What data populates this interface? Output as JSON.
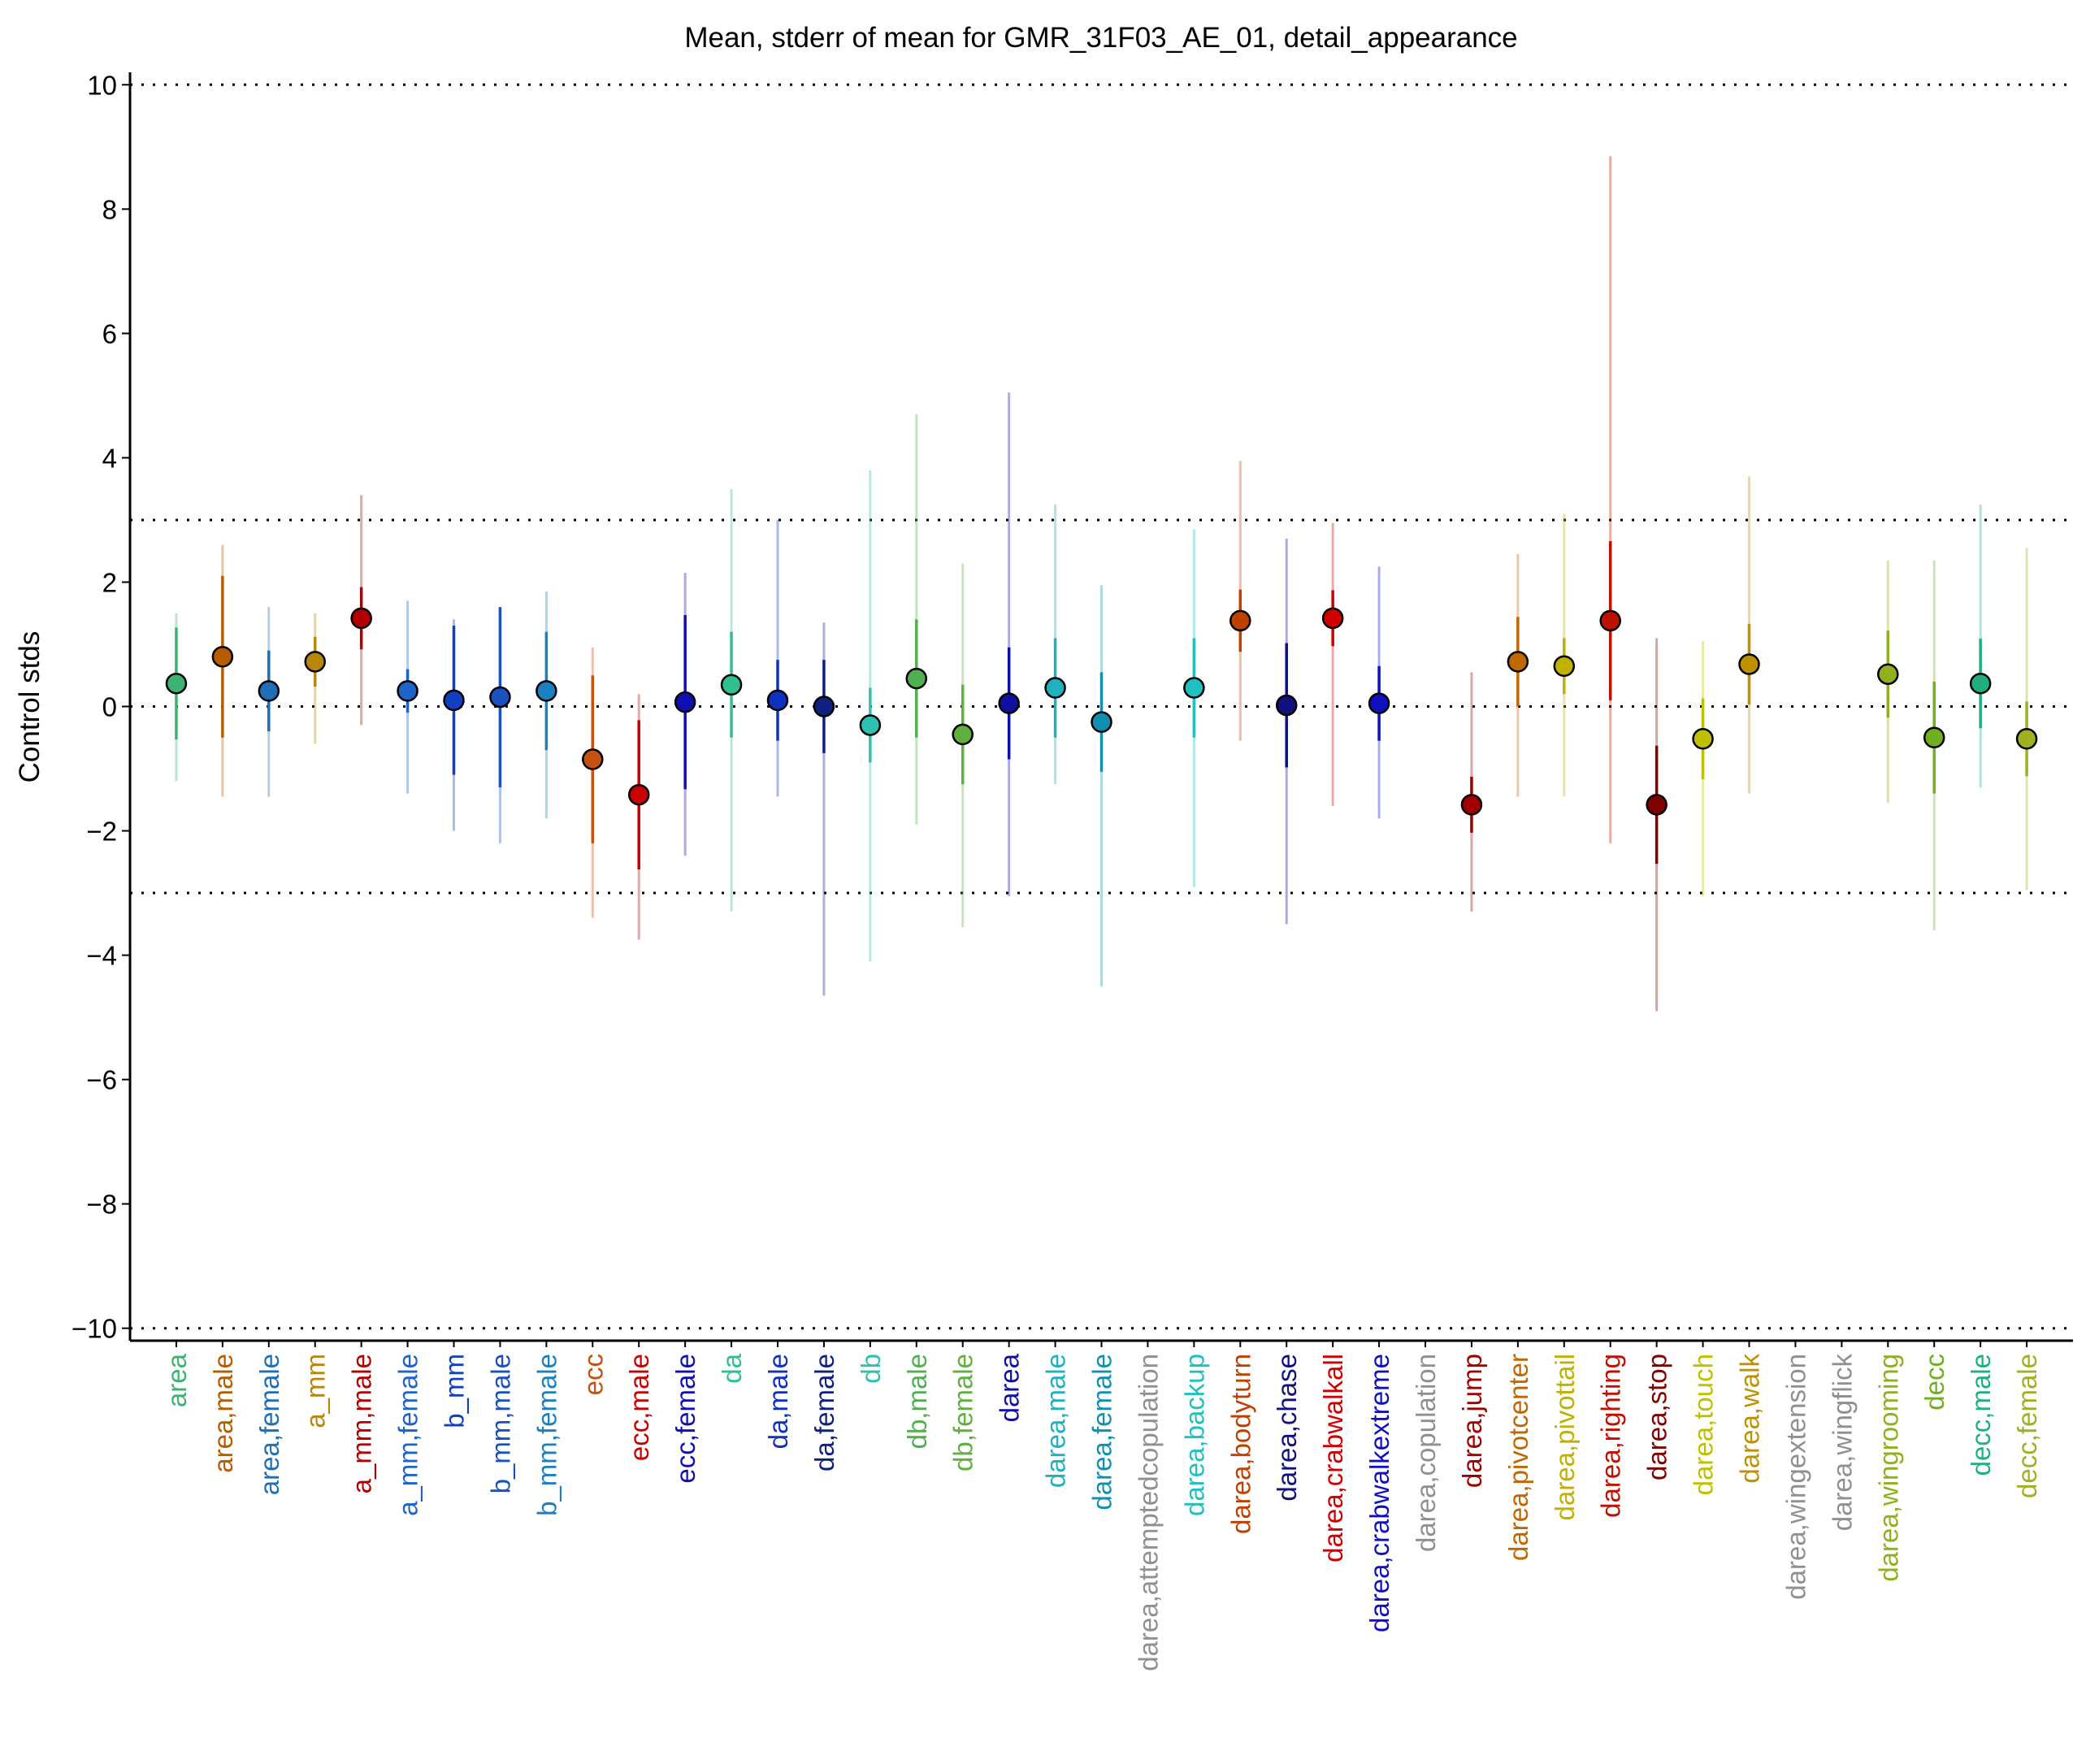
{
  "chart_data": {
    "type": "errorbar",
    "title": "Mean, stderr of mean for GMR_31F03_AE_01, detail_appearance",
    "ylabel": "Control stds",
    "categories": [
      "area",
      "area,male",
      "area,female",
      "a_mm",
      "a_mm,male",
      "a_mm,female",
      "b_mm",
      "b_mm,male",
      "b_mm,female",
      "ecc",
      "ecc,male",
      "ecc,female",
      "da",
      "da,male",
      "da,female",
      "db",
      "db,male",
      "db,female",
      "darea",
      "darea,male",
      "darea,female",
      "darea,attemptedcopulation",
      "darea,backup",
      "darea,bodyturn",
      "darea,chase",
      "darea,crabwalkall",
      "darea,crabwalkextreme",
      "darea,copulation",
      "darea,jump",
      "darea,pivotcenter",
      "darea,pivottail",
      "darea,righting",
      "darea,stop",
      "darea,touch",
      "darea,walk",
      "darea,wingextension",
      "darea,wingflick",
      "darea,wingrooming",
      "decc",
      "decc,male",
      "decc,female"
    ],
    "colors": [
      "#3cb371",
      "#b85c00",
      "#1f6fb5",
      "#b8860b",
      "#b00000",
      "#1e64c8",
      "#1040c0",
      "#1a50c0",
      "#1a80c0",
      "#c85010",
      "#c80000",
      "#1010b0",
      "#30c090",
      "#1030c0",
      "#102080",
      "#30c0b0",
      "#50b050",
      "#60b040",
      "#1010a0",
      "#20b0c0",
      "#1090b0",
      "#909090",
      "#20c0c0",
      "#c04000",
      "#101080",
      "#d00000",
      "#1010c0",
      "#909090",
      "#a00000",
      "#c06800",
      "#c0b000",
      "#c01000",
      "#800000",
      "#c0c000",
      "#c09000",
      "#909090",
      "#909090",
      "#90b020",
      "#70b020",
      "#20b080",
      "#a0b020"
    ],
    "mean": [
      0.37,
      0.8,
      0.25,
      0.72,
      1.42,
      0.25,
      0.1,
      0.15,
      0.25,
      -0.85,
      -1.42,
      0.07,
      0.35,
      0.1,
      0.0,
      -0.3,
      0.45,
      -0.45,
      0.05,
      0.3,
      -0.25,
      null,
      0.3,
      1.38,
      0.02,
      1.42,
      0.05,
      null,
      -1.58,
      0.72,
      0.65,
      1.38,
      -1.58,
      -0.52,
      0.68,
      null,
      null,
      0.52,
      -0.5,
      0.37,
      -0.52
    ],
    "err": [
      0.9,
      1.3,
      0.65,
      0.4,
      0.5,
      0.35,
      1.2,
      1.45,
      0.95,
      1.35,
      1.2,
      1.4,
      0.85,
      0.65,
      0.75,
      0.6,
      0.95,
      0.8,
      0.9,
      0.8,
      0.8,
      null,
      0.8,
      0.5,
      1.0,
      0.45,
      0.6,
      null,
      0.45,
      0.72,
      0.45,
      1.28,
      0.95,
      0.65,
      0.65,
      null,
      null,
      0.7,
      0.9,
      0.72,
      0.6
    ],
    "low": [
      -1.2,
      -1.45,
      -1.45,
      -0.6,
      -0.3,
      -1.4,
      -2.0,
      -2.2,
      -1.8,
      -3.4,
      -3.75,
      -2.4,
      -3.3,
      -1.45,
      -4.65,
      -4.1,
      -1.9,
      -3.55,
      -3.05,
      -1.25,
      -4.5,
      null,
      -2.9,
      -0.55,
      -3.5,
      -1.6,
      -1.8,
      null,
      -3.3,
      -1.45,
      -1.45,
      -2.2,
      -4.9,
      -3.05,
      -1.4,
      null,
      null,
      -1.55,
      -3.6,
      -1.3,
      -2.95
    ],
    "high": [
      1.5,
      2.6,
      1.6,
      1.5,
      3.4,
      1.7,
      1.4,
      1.6,
      1.85,
      0.95,
      0.2,
      2.15,
      3.5,
      3.0,
      1.35,
      3.8,
      4.7,
      2.3,
      5.05,
      3.25,
      1.95,
      null,
      2.85,
      3.95,
      2.7,
      2.95,
      2.25,
      null,
      0.55,
      2.45,
      3.1,
      8.85,
      1.1,
      1.05,
      3.7,
      null,
      null,
      2.35,
      2.35,
      3.25,
      2.55
    ],
    "ylim": [
      -10.2,
      10.2
    ],
    "yticks": [
      {
        "value": -10,
        "label": "−10"
      },
      {
        "value": -8,
        "label": "−8"
      },
      {
        "value": -6,
        "label": "−6"
      },
      {
        "value": -4,
        "label": "−4"
      },
      {
        "value": -2,
        "label": "−2"
      },
      0,
      2,
      4,
      6,
      8,
      10
    ],
    "hlines": [
      -10,
      -3,
      0,
      3,
      10
    ]
  }
}
